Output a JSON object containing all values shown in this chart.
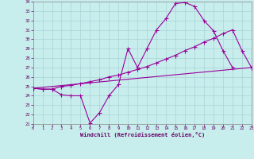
{
  "bg_color": "#c8eded",
  "grid_color": "#a8d4d4",
  "line_color": "#990099",
  "xlabel": "Windchill (Refroidissement éolien,°C)",
  "xlim": [
    0,
    23
  ],
  "ylim": [
    21,
    34
  ],
  "xticks": [
    0,
    1,
    2,
    3,
    4,
    5,
    6,
    7,
    8,
    9,
    10,
    11,
    12,
    13,
    14,
    15,
    16,
    17,
    18,
    19,
    20,
    21,
    22,
    23
  ],
  "yticks": [
    21,
    22,
    23,
    24,
    25,
    26,
    27,
    28,
    29,
    30,
    31,
    32,
    33,
    34
  ],
  "line1_x": [
    0,
    1,
    2,
    3,
    4,
    5,
    6,
    7,
    8,
    9,
    10,
    11,
    12,
    13,
    14,
    15,
    16,
    17,
    18,
    19,
    20,
    21
  ],
  "line1_y": [
    24.8,
    24.7,
    24.7,
    24.1,
    24.0,
    24.0,
    21.1,
    22.2,
    24.0,
    25.2,
    29.0,
    27.0,
    29.0,
    31.0,
    32.2,
    33.8,
    33.9,
    33.5,
    32.0,
    30.9,
    28.8,
    27.0
  ],
  "line2_x": [
    0,
    1,
    2,
    3,
    4,
    5,
    6,
    7,
    8,
    9,
    10,
    11,
    12,
    13,
    14,
    15,
    16,
    17,
    18,
    19,
    20,
    21,
    22,
    23
  ],
  "line2_y": [
    24.8,
    24.7,
    24.7,
    25.0,
    25.1,
    25.3,
    25.5,
    25.7,
    26.0,
    26.2,
    26.5,
    26.8,
    27.1,
    27.5,
    27.9,
    28.3,
    28.8,
    29.2,
    29.7,
    30.1,
    30.6,
    31.0,
    28.8,
    27.0
  ],
  "line3_x": [
    0,
    23
  ],
  "line3_y": [
    24.8,
    27.0
  ]
}
